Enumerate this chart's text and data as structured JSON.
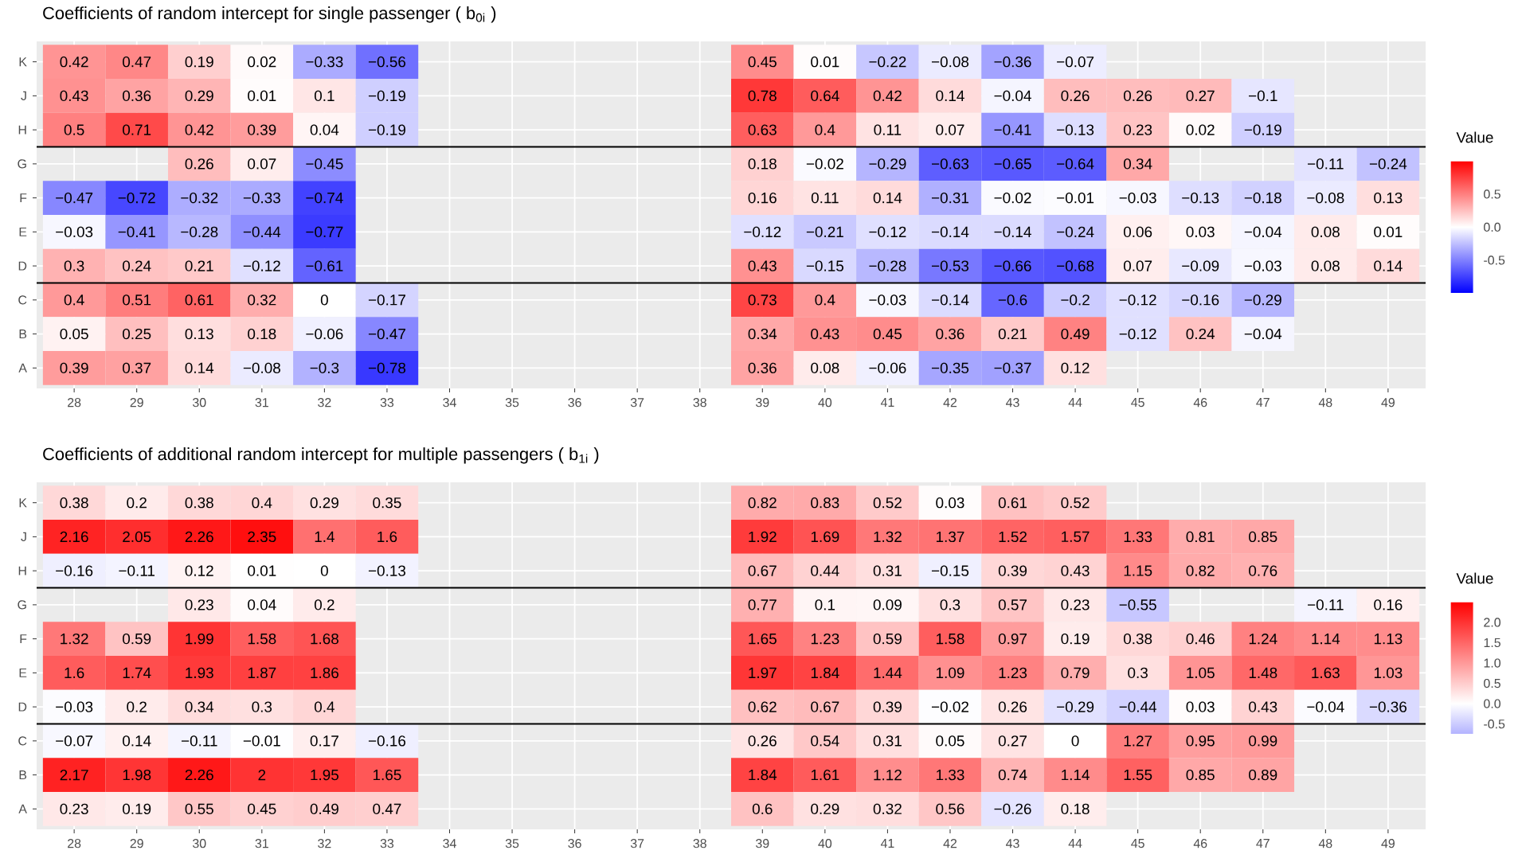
{
  "chart_data": [
    {
      "type": "heatmap",
      "title": "Coefficients of random intercept for single passenger ( b$_{0i}$ )",
      "categories": [
        "28",
        "29",
        "30",
        "31",
        "32",
        "33",
        "34",
        "35",
        "36",
        "37",
        "38",
        "39",
        "40",
        "41",
        "42",
        "43",
        "44",
        "45",
        "46",
        "47",
        "48",
        "49"
      ],
      "y_categories": [
        "K",
        "J",
        "H",
        "G",
        "F",
        "E",
        "D",
        "C",
        "B",
        "A"
      ],
      "cells": [
        [
          0.42,
          0.47,
          0.19,
          0.02,
          -0.33,
          -0.56,
          null,
          null,
          null,
          null,
          null,
          0.45,
          0.01,
          -0.22,
          -0.08,
          -0.36,
          -0.07,
          null,
          null,
          null,
          null,
          null
        ],
        [
          0.43,
          0.36,
          0.29,
          0.01,
          0.1,
          -0.19,
          null,
          null,
          null,
          null,
          null,
          0.78,
          0.64,
          0.42,
          0.14,
          -0.04,
          0.26,
          0.26,
          0.27,
          -0.1,
          null,
          null
        ],
        [
          0.5,
          0.71,
          0.42,
          0.39,
          0.04,
          -0.19,
          null,
          null,
          null,
          null,
          null,
          0.63,
          0.4,
          0.11,
          0.07,
          -0.41,
          -0.13,
          0.23,
          0.02,
          -0.19,
          null,
          null
        ],
        [
          null,
          null,
          0.26,
          0.07,
          -0.45,
          null,
          null,
          null,
          null,
          null,
          null,
          0.18,
          -0.02,
          -0.29,
          -0.63,
          -0.65,
          -0.64,
          0.34,
          null,
          null,
          -0.11,
          -0.24
        ],
        [
          -0.47,
          -0.72,
          -0.32,
          -0.33,
          -0.74,
          null,
          null,
          null,
          null,
          null,
          null,
          0.16,
          0.11,
          0.14,
          -0.31,
          -0.02,
          -0.01,
          -0.03,
          -0.13,
          -0.18,
          -0.08,
          0.13
        ],
        [
          -0.03,
          -0.41,
          -0.28,
          -0.44,
          -0.77,
          null,
          null,
          null,
          null,
          null,
          null,
          -0.12,
          -0.21,
          -0.12,
          -0.14,
          -0.14,
          -0.24,
          0.06,
          0.03,
          -0.04,
          0.08,
          0.01
        ],
        [
          0.3,
          0.24,
          0.21,
          -0.12,
          -0.61,
          null,
          null,
          null,
          null,
          null,
          null,
          0.43,
          -0.15,
          -0.28,
          -0.53,
          -0.66,
          -0.68,
          0.07,
          -0.09,
          -0.03,
          0.08,
          0.14
        ],
        [
          0.4,
          0.51,
          0.61,
          0.32,
          0,
          -0.17,
          null,
          null,
          null,
          null,
          null,
          0.73,
          0.4,
          -0.03,
          -0.14,
          -0.6,
          -0.2,
          -0.12,
          -0.16,
          -0.29,
          null,
          null
        ],
        [
          0.05,
          0.25,
          0.13,
          0.18,
          -0.06,
          -0.47,
          null,
          null,
          null,
          null,
          null,
          0.34,
          0.43,
          0.45,
          0.36,
          0.21,
          0.49,
          -0.12,
          0.24,
          -0.04,
          null,
          null
        ],
        [
          0.39,
          0.37,
          0.14,
          -0.08,
          -0.3,
          -0.78,
          null,
          null,
          null,
          null,
          null,
          0.36,
          0.08,
          -0.06,
          -0.35,
          -0.37,
          0.12,
          null,
          null,
          null,
          null,
          null
        ]
      ],
      "clabel": "Value",
      "clim": [
        -1,
        1
      ],
      "cticks": [
        {
          "value": -0.5,
          "label": "-0.5"
        },
        {
          "value": 0,
          "label": "0.0"
        },
        {
          "value": 0.5,
          "label": "0.5"
        }
      ],
      "data_labels": true,
      "grid": true
    },
    {
      "type": "heatmap",
      "title": "Coefficients of additional random intercept for multiple passengers ( b$_{1i}$ )",
      "categories": [
        "28",
        "29",
        "30",
        "31",
        "32",
        "33",
        "34",
        "35",
        "36",
        "37",
        "38",
        "39",
        "40",
        "41",
        "42",
        "43",
        "44",
        "45",
        "46",
        "47",
        "48",
        "49"
      ],
      "y_categories": [
        "K",
        "J",
        "H",
        "G",
        "F",
        "E",
        "D",
        "C",
        "B",
        "A"
      ],
      "cells": [
        [
          0.38,
          0.2,
          0.38,
          0.4,
          0.29,
          0.35,
          null,
          null,
          null,
          null,
          null,
          0.82,
          0.83,
          0.52,
          0.03,
          0.61,
          0.52,
          null,
          null,
          null,
          null,
          null
        ],
        [
          2.16,
          2.05,
          2.26,
          2.35,
          1.4,
          1.6,
          null,
          null,
          null,
          null,
          null,
          1.92,
          1.69,
          1.32,
          1.37,
          1.52,
          1.57,
          1.33,
          0.81,
          0.85,
          null,
          null
        ],
        [
          -0.16,
          -0.11,
          0.12,
          0.01,
          0,
          -0.13,
          null,
          null,
          null,
          null,
          null,
          0.67,
          0.44,
          0.31,
          -0.15,
          0.39,
          0.43,
          1.15,
          0.82,
          0.76,
          null,
          null
        ],
        [
          null,
          null,
          0.23,
          0.04,
          0.2,
          null,
          null,
          null,
          null,
          null,
          null,
          0.77,
          0.1,
          0.09,
          0.3,
          0.57,
          0.23,
          -0.55,
          null,
          null,
          -0.11,
          0.16
        ],
        [
          1.32,
          0.59,
          1.99,
          1.58,
          1.68,
          null,
          null,
          null,
          null,
          null,
          null,
          1.65,
          1.23,
          0.59,
          1.58,
          0.97,
          0.19,
          0.38,
          0.46,
          1.24,
          1.14,
          1.13
        ],
        [
          1.6,
          1.74,
          1.93,
          1.87,
          1.86,
          null,
          null,
          null,
          null,
          null,
          null,
          1.97,
          1.84,
          1.44,
          1.09,
          1.23,
          0.79,
          0.3,
          1.05,
          1.48,
          1.63,
          1.03
        ],
        [
          -0.03,
          0.2,
          0.34,
          0.3,
          0.4,
          null,
          null,
          null,
          null,
          null,
          null,
          0.62,
          0.67,
          0.39,
          -0.02,
          0.26,
          -0.29,
          -0.44,
          0.03,
          0.43,
          -0.04,
          -0.36
        ],
        [
          -0.07,
          0.14,
          -0.11,
          -0.01,
          0.17,
          -0.16,
          null,
          null,
          null,
          null,
          null,
          0.26,
          0.54,
          0.31,
          0.05,
          0.27,
          0,
          1.27,
          0.95,
          0.99,
          null,
          null
        ],
        [
          2.17,
          1.98,
          2.26,
          2,
          1.95,
          1.65,
          null,
          null,
          null,
          null,
          null,
          1.84,
          1.61,
          1.12,
          1.33,
          0.74,
          1.14,
          1.55,
          0.85,
          0.89,
          null,
          null
        ],
        [
          0.23,
          0.19,
          0.55,
          0.45,
          0.49,
          0.47,
          null,
          null,
          null,
          null,
          null,
          0.6,
          0.29,
          0.32,
          0.56,
          -0.26,
          0.18,
          null,
          null,
          null,
          null,
          null
        ]
      ],
      "clabel": "Value",
      "clim": [
        -0.75,
        2.5
      ],
      "cticks": [
        {
          "value": -0.5,
          "label": "-0.5"
        },
        {
          "value": 0,
          "label": "0.0"
        },
        {
          "value": 0.5,
          "label": "0.5"
        },
        {
          "value": 1,
          "label": "1.0"
        },
        {
          "value": 1.5,
          "label": "1.5"
        },
        {
          "value": 2,
          "label": "2.0"
        }
      ],
      "data_labels": true,
      "grid": true
    }
  ]
}
